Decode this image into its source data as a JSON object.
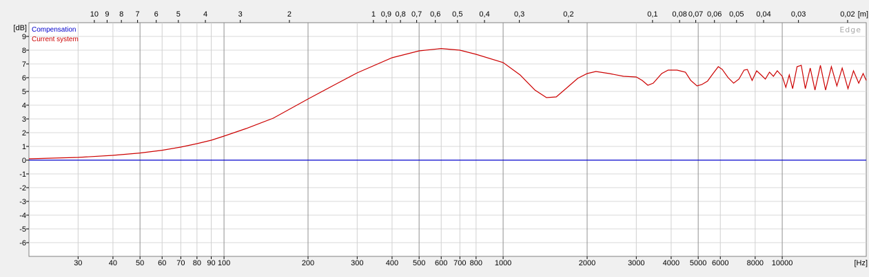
{
  "chart_data": {
    "type": "line",
    "xscale": "log",
    "x_unit": "[Hz]",
    "y_unit": "[dB]",
    "top_unit": "[m]",
    "xlim": [
      20,
      20000
    ],
    "ylim": [
      -7,
      10
    ],
    "x_ticks": [
      {
        "v": 30,
        "label": "30"
      },
      {
        "v": 40,
        "label": "40"
      },
      {
        "v": 50,
        "label": "50"
      },
      {
        "v": 60,
        "label": "60"
      },
      {
        "v": 70,
        "label": "70"
      },
      {
        "v": 80,
        "label": "80"
      },
      {
        "v": 90,
        "label": "90"
      },
      {
        "v": 100,
        "label": "100"
      },
      {
        "v": 200,
        "label": "200"
      },
      {
        "v": 300,
        "label": "300"
      },
      {
        "v": 400,
        "label": "400"
      },
      {
        "v": 500,
        "label": "500"
      },
      {
        "v": 600,
        "label": "600"
      },
      {
        "v": 700,
        "label": "700"
      },
      {
        "v": 800,
        "label": "800"
      },
      {
        "v": 1000,
        "label": "1000"
      },
      {
        "v": 2000,
        "label": "2000"
      },
      {
        "v": 3000,
        "label": "3000"
      },
      {
        "v": 4000,
        "label": "4000"
      },
      {
        "v": 5000,
        "label": "5000"
      },
      {
        "v": 6000,
        "label": "6000"
      },
      {
        "v": 8000,
        "label": "8000"
      },
      {
        "v": 10000,
        "label": "10000"
      }
    ],
    "major_x": [
      50,
      100,
      200,
      500,
      1000,
      2000,
      5000,
      10000
    ],
    "y_ticks": [
      {
        "v": 9,
        "label": "9"
      },
      {
        "v": 8,
        "label": "8"
      },
      {
        "v": 7,
        "label": "7"
      },
      {
        "v": 6,
        "label": "6"
      },
      {
        "v": 5,
        "label": "5"
      },
      {
        "v": 4,
        "label": "4"
      },
      {
        "v": 3,
        "label": "3"
      },
      {
        "v": 2,
        "label": "2"
      },
      {
        "v": 1,
        "label": "1"
      },
      {
        "v": 0,
        "label": "0"
      },
      {
        "v": -1,
        "label": "-1"
      },
      {
        "v": -2,
        "label": "-2"
      },
      {
        "v": -3,
        "label": "-3"
      },
      {
        "v": -4,
        "label": "-4"
      },
      {
        "v": -5,
        "label": "-5"
      },
      {
        "v": -6,
        "label": "-6"
      }
    ],
    "top_ticks": [
      {
        "v": 10,
        "label": "10"
      },
      {
        "v": 9,
        "label": "9"
      },
      {
        "v": 8,
        "label": "8"
      },
      {
        "v": 7,
        "label": "7"
      },
      {
        "v": 6,
        "label": "6"
      },
      {
        "v": 5,
        "label": "5"
      },
      {
        "v": 4,
        "label": "4"
      },
      {
        "v": 3,
        "label": "3"
      },
      {
        "v": 2,
        "label": "2"
      },
      {
        "v": 1,
        "label": "1"
      },
      {
        "v": 0.9,
        "label": "0,9"
      },
      {
        "v": 0.8,
        "label": "0,8"
      },
      {
        "v": 0.7,
        "label": "0,7"
      },
      {
        "v": 0.6,
        "label": "0,6"
      },
      {
        "v": 0.5,
        "label": "0,5"
      },
      {
        "v": 0.4,
        "label": "0,4"
      },
      {
        "v": 0.3,
        "label": "0,3"
      },
      {
        "v": 0.2,
        "label": "0,2"
      },
      {
        "v": 0.1,
        "label": "0,1"
      },
      {
        "v": 0.08,
        "label": "0,08"
      },
      {
        "v": 0.07,
        "label": "0,07"
      },
      {
        "v": 0.06,
        "label": "0,06"
      },
      {
        "v": 0.05,
        "label": "0,05"
      },
      {
        "v": 0.04,
        "label": "0,04"
      },
      {
        "v": 0.03,
        "label": "0,03"
      },
      {
        "v": 0.02,
        "label": "0,02"
      }
    ],
    "series": [
      {
        "name": "Compensation",
        "color": "#0000cc",
        "points": [
          [
            20,
            0
          ],
          [
            20000,
            0
          ]
        ]
      },
      {
        "name": "Current system",
        "color": "#cc0000",
        "points": [
          [
            20,
            0.1
          ],
          [
            30,
            0.2
          ],
          [
            40,
            0.35
          ],
          [
            50,
            0.52
          ],
          [
            60,
            0.72
          ],
          [
            70,
            0.95
          ],
          [
            80,
            1.2
          ],
          [
            90,
            1.45
          ],
          [
            100,
            1.75
          ],
          [
            120,
            2.3
          ],
          [
            150,
            3.05
          ],
          [
            200,
            4.45
          ],
          [
            250,
            5.5
          ],
          [
            300,
            6.35
          ],
          [
            400,
            7.45
          ],
          [
            500,
            7.95
          ],
          [
            600,
            8.12
          ],
          [
            700,
            8.0
          ],
          [
            800,
            7.7
          ],
          [
            1000,
            7.1
          ],
          [
            1150,
            6.2
          ],
          [
            1300,
            5.1
          ],
          [
            1430,
            4.55
          ],
          [
            1550,
            4.6
          ],
          [
            1700,
            5.3
          ],
          [
            1850,
            5.95
          ],
          [
            2000,
            6.3
          ],
          [
            2150,
            6.45
          ],
          [
            2400,
            6.3
          ],
          [
            2700,
            6.1
          ],
          [
            3000,
            6.05
          ],
          [
            3150,
            5.8
          ],
          [
            3300,
            5.45
          ],
          [
            3450,
            5.6
          ],
          [
            3700,
            6.3
          ],
          [
            3900,
            6.55
          ],
          [
            4200,
            6.55
          ],
          [
            4500,
            6.4
          ],
          [
            4700,
            5.8
          ],
          [
            4950,
            5.4
          ],
          [
            5150,
            5.5
          ],
          [
            5400,
            5.75
          ],
          [
            5650,
            6.3
          ],
          [
            5900,
            6.8
          ],
          [
            6100,
            6.6
          ],
          [
            6400,
            6.0
          ],
          [
            6700,
            5.6
          ],
          [
            7000,
            5.9
          ],
          [
            7300,
            6.55
          ],
          [
            7500,
            6.6
          ],
          [
            7800,
            5.8
          ],
          [
            8100,
            6.5
          ],
          [
            8400,
            6.2
          ],
          [
            8700,
            5.9
          ],
          [
            9000,
            6.4
          ],
          [
            9300,
            6.1
          ],
          [
            9600,
            6.5
          ],
          [
            10000,
            6.1
          ],
          [
            10300,
            5.3
          ],
          [
            10600,
            6.2
          ],
          [
            10900,
            5.2
          ],
          [
            11300,
            6.8
          ],
          [
            11700,
            6.9
          ],
          [
            12100,
            5.2
          ],
          [
            12600,
            6.7
          ],
          [
            13100,
            5.1
          ],
          [
            13700,
            6.9
          ],
          [
            14300,
            5.1
          ],
          [
            15000,
            6.8
          ],
          [
            15700,
            5.4
          ],
          [
            16400,
            6.7
          ],
          [
            17200,
            5.2
          ],
          [
            18000,
            6.5
          ],
          [
            18800,
            5.6
          ],
          [
            19500,
            6.3
          ],
          [
            20000,
            5.8
          ]
        ]
      }
    ],
    "legend": [
      "Compensation",
      "Current system"
    ],
    "legend_position": "top-left",
    "watermark": "Edge",
    "grid": true
  }
}
